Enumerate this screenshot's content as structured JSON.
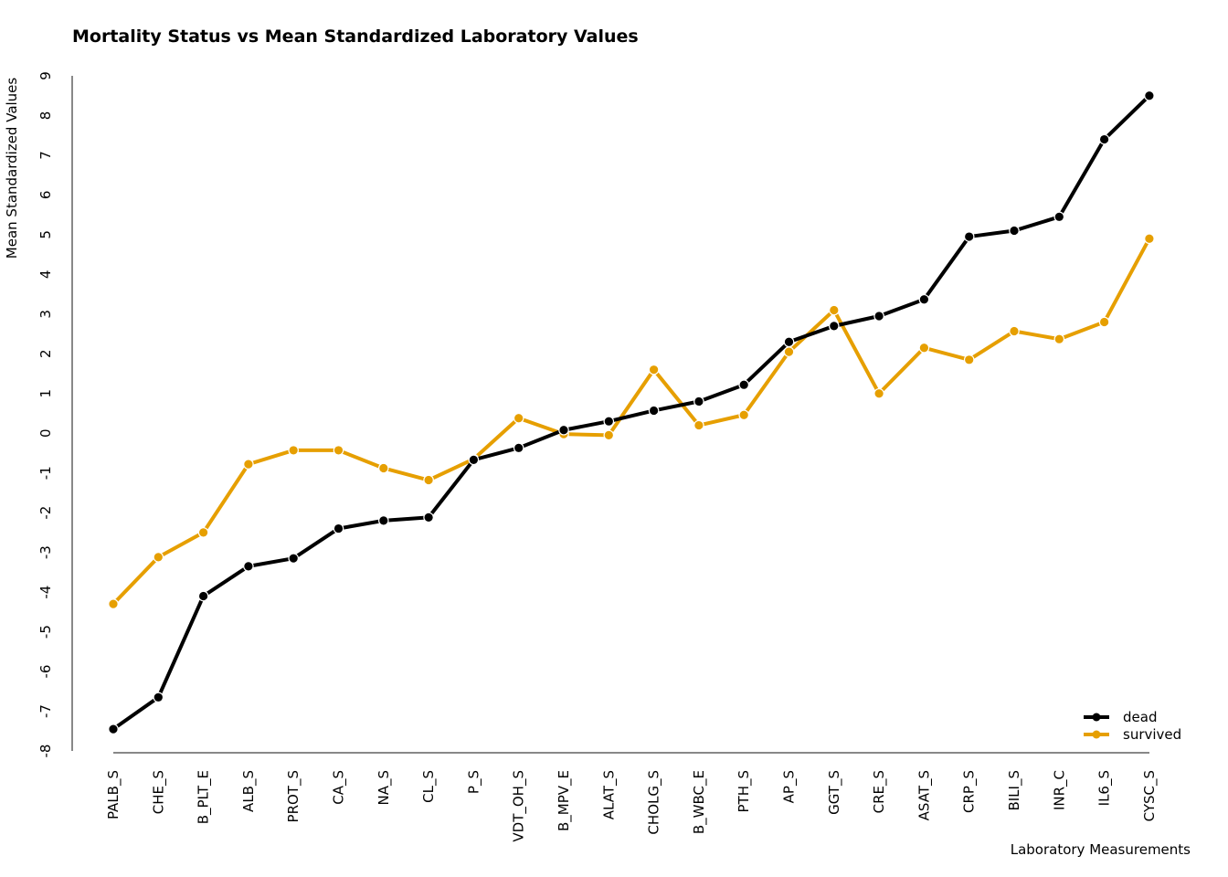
{
  "chart_data": {
    "type": "line",
    "title": "Mortality Status vs Mean Standardized Laboratory Values",
    "xlabel": "Laboratory Measurements",
    "ylabel": "Mean Standardized Values",
    "categories": [
      "PALB_S",
      "CHE_S",
      "B_PLT_E",
      "ALB_S",
      "PROT_S",
      "CA_S",
      "NA_S",
      "CL_S",
      "P_S",
      "VDT_OH_S",
      "B_MPV_E",
      "ALAT_S",
      "CHOLG_S",
      "B_WBC_E",
      "PTH_S",
      "AP_S",
      "GGT_S",
      "CRE_S",
      "ASAT_S",
      "CRP_S",
      "BILI_S",
      "INR_C",
      "IL6_S",
      "CYSC_S"
    ],
    "yticks": [
      -8,
      -7,
      -6,
      -5,
      -4,
      -3,
      -2,
      -1,
      0,
      1,
      2,
      3,
      4,
      5,
      6,
      7,
      8,
      9
    ],
    "ylim": [
      -8,
      9
    ],
    "grid": false,
    "legend_position": "bottom-right",
    "series": [
      {
        "name": "dead",
        "color": "#000000",
        "values": [
          -7.45,
          -6.65,
          -4.1,
          -3.35,
          -3.15,
          -2.4,
          -2.2,
          -2.12,
          -0.67,
          -0.37,
          0.08,
          0.3,
          0.57,
          0.8,
          1.22,
          2.3,
          2.7,
          2.95,
          3.37,
          4.95,
          5.1,
          5.45,
          7.4,
          8.5
        ]
      },
      {
        "name": "survived",
        "color": "#E69F00",
        "values": [
          -4.3,
          -3.12,
          -2.5,
          -0.78,
          -0.43,
          -0.43,
          -0.88,
          -1.18,
          -0.65,
          0.38,
          -0.02,
          -0.05,
          1.6,
          0.2,
          0.46,
          2.05,
          3.1,
          1.0,
          2.15,
          1.85,
          2.57,
          2.37,
          2.8,
          4.9
        ]
      }
    ]
  }
}
